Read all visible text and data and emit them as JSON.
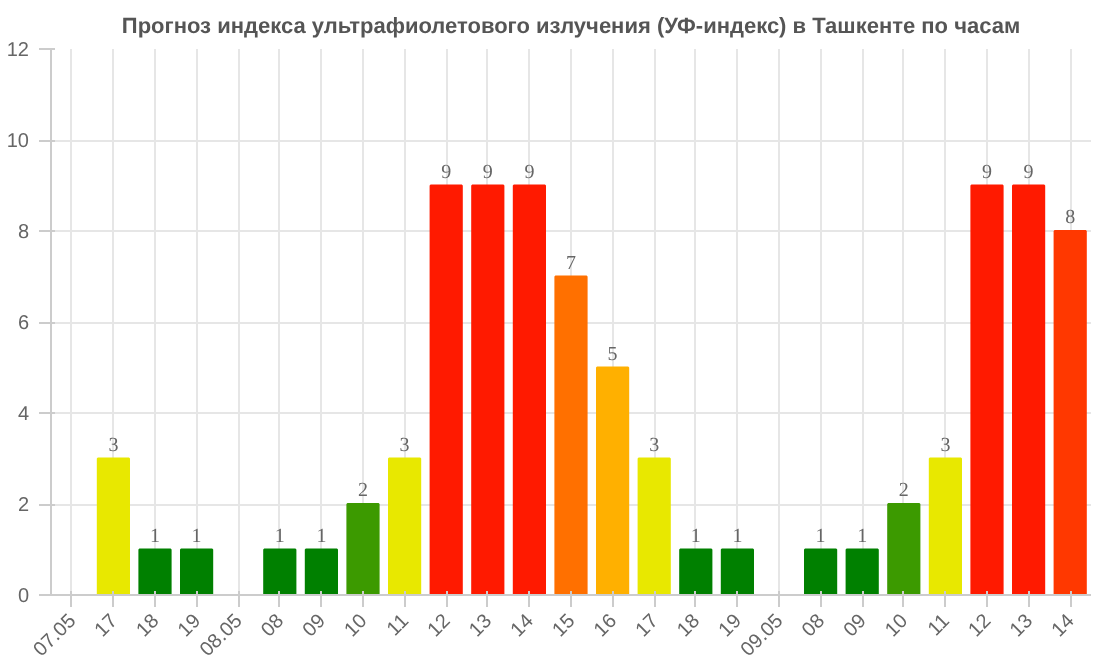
{
  "chart_data": {
    "type": "bar",
    "title": "Прогноз индекса ультрафиолетового излучения (УФ-индекс) в Ташкенте по часам",
    "categories": [
      "07.05",
      "17",
      "18",
      "19",
      "08.05",
      "08",
      "09",
      "10",
      "11",
      "12",
      "13",
      "14",
      "15",
      "16",
      "17",
      "18",
      "19",
      "09.05",
      "08",
      "09",
      "10",
      "11",
      "12",
      "13",
      "14"
    ],
    "values": [
      null,
      3,
      1,
      1,
      null,
      1,
      1,
      2,
      3,
      9,
      9,
      9,
      7,
      5,
      3,
      1,
      1,
      null,
      1,
      1,
      2,
      3,
      9,
      9,
      8
    ],
    "colors": [
      "#008000",
      "#e8e800",
      "#008000",
      "#008000",
      "#008000",
      "#008000",
      "#008000",
      "#3c9a00",
      "#e8e800",
      "#ff1a00",
      "#ff1a00",
      "#ff1a00",
      "#ff7000",
      "#ffb000",
      "#e8e800",
      "#008000",
      "#008000",
      "#008000",
      "#008000",
      "#008000",
      "#3c9a00",
      "#e8e800",
      "#ff1a00",
      "#ff1a00",
      "#ff3800"
    ],
    "ylim": [
      0,
      12
    ],
    "yticks": [
      0,
      2,
      4,
      6,
      8,
      10,
      12
    ],
    "grid": true,
    "data_labels": true
  }
}
